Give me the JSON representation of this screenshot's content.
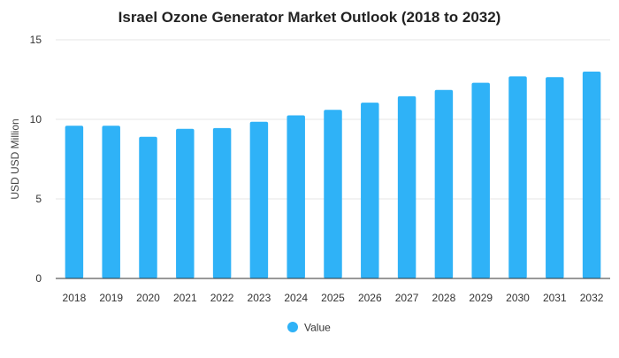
{
  "chart_data": {
    "type": "bar",
    "title": "Israel Ozone Generator Market Outlook (2018 to 2032)",
    "xlabel": "",
    "ylabel": "USD USD Million",
    "ylim": [
      0,
      15
    ],
    "yticks": [
      0,
      5,
      10,
      15
    ],
    "grid": true,
    "legend_position": "bottom",
    "bar_color": "#2fb2f7",
    "categories": [
      "2018",
      "2019",
      "2020",
      "2021",
      "2022",
      "2023",
      "2024",
      "2025",
      "2026",
      "2027",
      "2028",
      "2029",
      "2030",
      "2031",
      "2032"
    ],
    "series": [
      {
        "name": "Value",
        "values": [
          9.6,
          9.6,
          8.9,
          9.4,
          9.45,
          9.85,
          10.25,
          10.6,
          11.05,
          11.45,
          11.85,
          12.3,
          12.7,
          12.65,
          13.0
        ]
      }
    ]
  }
}
